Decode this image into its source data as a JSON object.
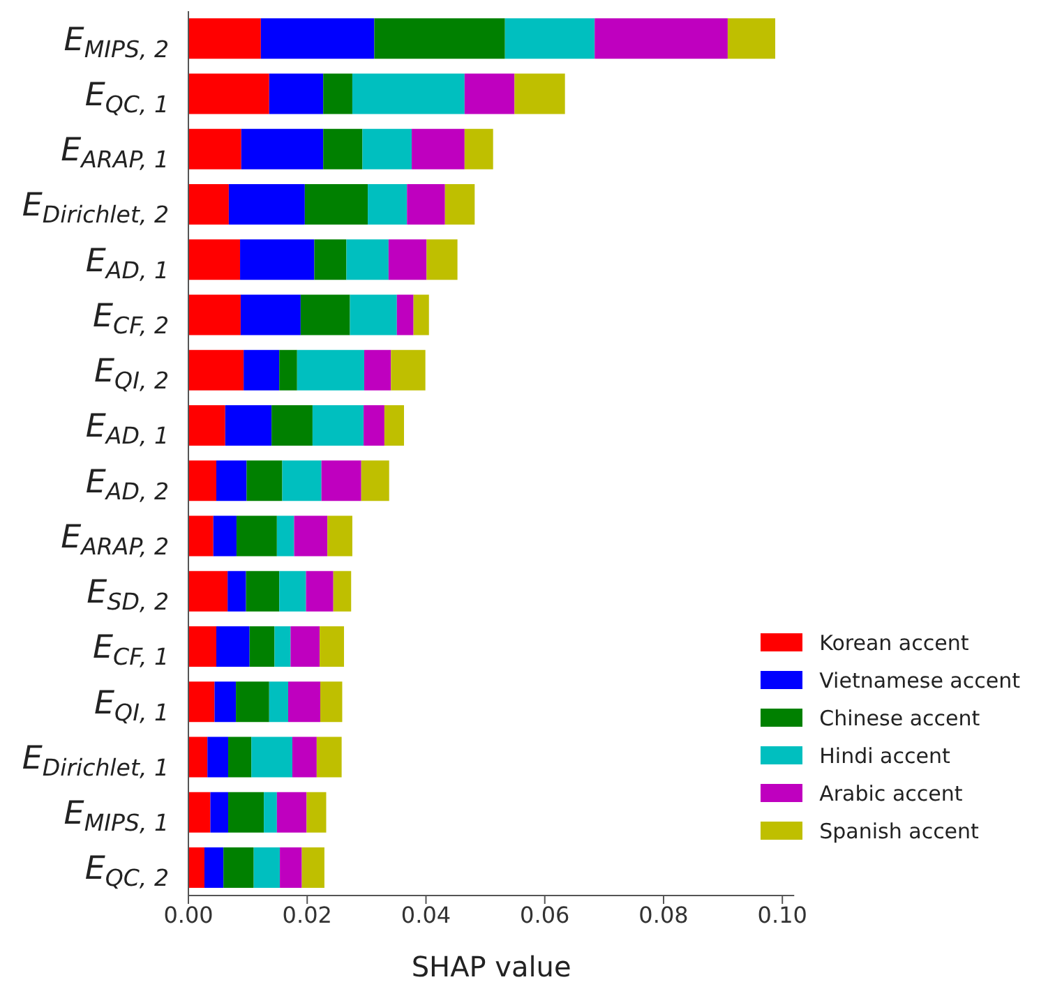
{
  "chart_data": {
    "type": "bar",
    "orientation": "horizontal",
    "stacked": true,
    "xlabel": "SHAP value",
    "categories": [
      "E$_{MIPS, 2}$",
      "E$_{QC, 1}$",
      "E$_{ARAP, 1}$",
      "E$_{Dirichlet, 2}$",
      "E$_{AD, 1}$",
      "E$_{CF, 2}$",
      "E$_{QI, 2}$",
      "E$_{AD, 1}$",
      "E$_{AD, 2}$",
      "E$_{ARAP, 2}$",
      "E$_{SD, 2}$",
      "E$_{CF, 1}$",
      "E$_{QI, 1}$",
      "E$_{Dirichlet, 1}$",
      "E$_{MIPS, 1}$",
      "E$_{QC, 2}$"
    ],
    "series": [
      {
        "name": "Korean accent",
        "color": "#ff0000",
        "values": [
          0.0122,
          0.0136,
          0.0089,
          0.0068,
          0.0087,
          0.0088,
          0.0093,
          0.0062,
          0.0047,
          0.0042,
          0.0066,
          0.0047,
          0.0044,
          0.0032,
          0.0037,
          0.0027
        ]
      },
      {
        "name": "Vietnamese accent",
        "color": "#0000ff",
        "values": [
          0.0191,
          0.0091,
          0.0138,
          0.0128,
          0.0125,
          0.0101,
          0.006,
          0.0078,
          0.0051,
          0.0039,
          0.0031,
          0.0056,
          0.0036,
          0.0035,
          0.003,
          0.0032
        ]
      },
      {
        "name": "Chinese accent",
        "color": "#008000",
        "values": [
          0.022,
          0.0049,
          0.0066,
          0.0106,
          0.0054,
          0.0083,
          0.003,
          0.0069,
          0.006,
          0.0068,
          0.0056,
          0.0042,
          0.0056,
          0.0039,
          0.006,
          0.0051
        ]
      },
      {
        "name": "Hindi accent",
        "color": "#00bfbf",
        "values": [
          0.0151,
          0.0189,
          0.0083,
          0.0066,
          0.0071,
          0.0079,
          0.0113,
          0.0086,
          0.0066,
          0.0029,
          0.0045,
          0.0027,
          0.0032,
          0.0069,
          0.0022,
          0.0044
        ]
      },
      {
        "name": "Arabic accent",
        "color": "#bf00bf",
        "values": [
          0.0224,
          0.0084,
          0.0089,
          0.0064,
          0.0064,
          0.0028,
          0.0045,
          0.0035,
          0.0067,
          0.0056,
          0.0046,
          0.0049,
          0.0054,
          0.0041,
          0.005,
          0.0037
        ]
      },
      {
        "name": "Spanish accent",
        "color": "#bfbf00",
        "values": [
          0.008,
          0.0085,
          0.0048,
          0.005,
          0.0052,
          0.0026,
          0.0058,
          0.0033,
          0.0047,
          0.0042,
          0.003,
          0.0041,
          0.0037,
          0.0042,
          0.0033,
          0.0038
        ]
      }
    ],
    "xlim": [
      0,
      0.102
    ],
    "xticks": [
      {
        "value": 0,
        "label": "0.00"
      },
      {
        "value": 0.02,
        "label": "0.02"
      },
      {
        "value": 0.04,
        "label": "0.04"
      },
      {
        "value": 0.06,
        "label": "0.06"
      },
      {
        "value": 0.08,
        "label": "0.08"
      },
      {
        "value": 0.1,
        "label": "0.10"
      }
    ],
    "grid": false,
    "legend": "bottom right"
  }
}
